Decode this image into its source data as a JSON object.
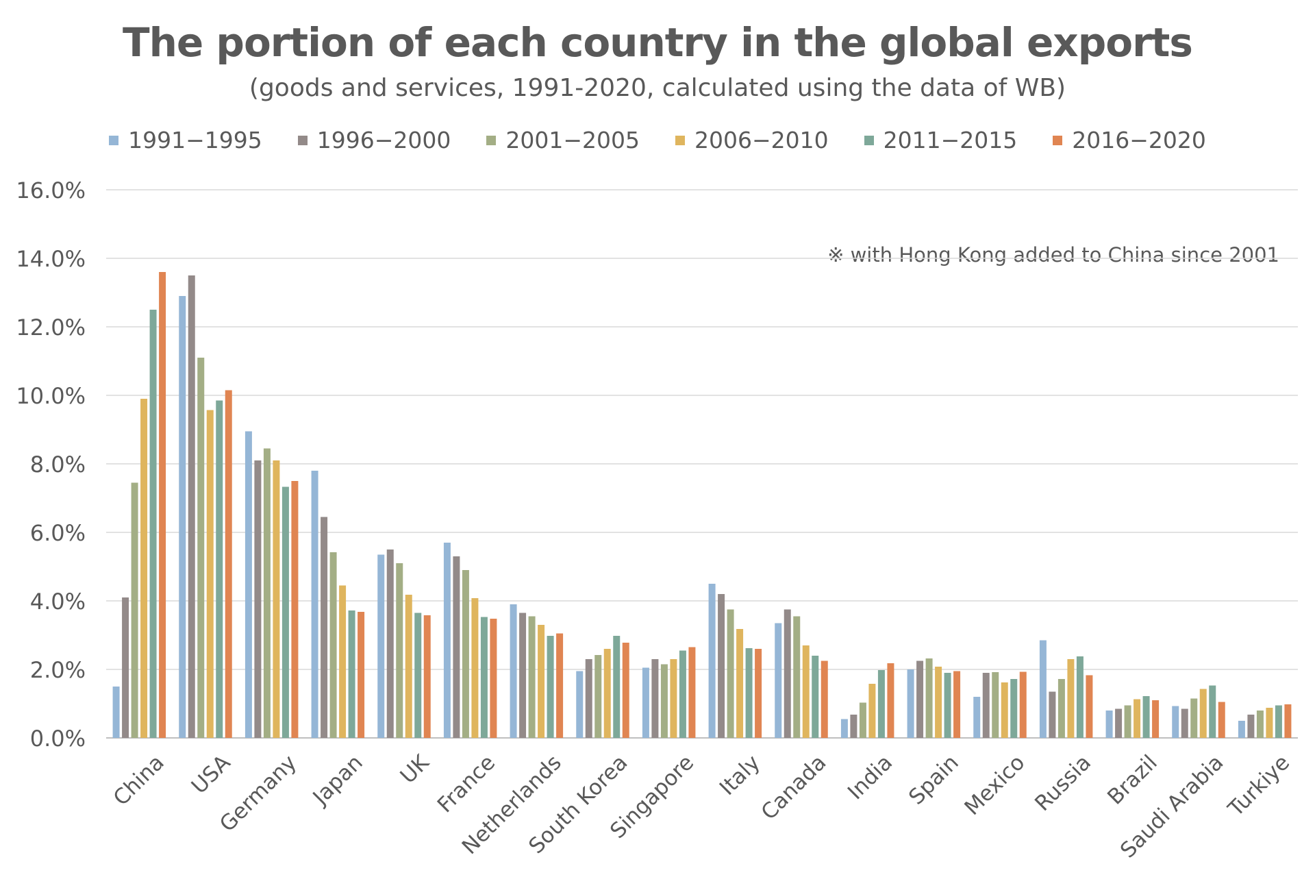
{
  "chart_data": {
    "type": "bar",
    "title": "The portion of each country in the global exports",
    "subtitle": "(goods and services, 1991-2020, calculated using the data of WB)",
    "note": "※  with Hong Kong added to China since 2001",
    "ylim": [
      0,
      16
    ],
    "yticks": [
      "0.0%",
      "2.0%",
      "4.0%",
      "6.0%",
      "8.0%",
      "10.0%",
      "12.0%",
      "14.0%",
      "16.0%"
    ],
    "grid": true,
    "legend_position": "top",
    "categories": [
      "China",
      "USA",
      "Germany",
      "Japan",
      "UK",
      "France",
      "Netherlands",
      "South Korea",
      "Singapore",
      "Italy",
      "Canada",
      "India",
      "Spain",
      "Mexico",
      "Russia",
      "Brazil",
      "Saudi Arabia",
      "Turkiye"
    ],
    "series": [
      {
        "name": "1991−1995",
        "color": "#95B6D6",
        "values": [
          1.5,
          12.9,
          8.95,
          7.8,
          5.35,
          5.7,
          3.9,
          1.95,
          2.05,
          4.5,
          3.35,
          0.55,
          2.0,
          1.2,
          2.85,
          0.8,
          0.93,
          0.5
        ]
      },
      {
        "name": "1996−2000",
        "color": "#938A89",
        "values": [
          4.1,
          13.5,
          8.1,
          6.45,
          5.5,
          5.3,
          3.65,
          2.3,
          2.3,
          4.2,
          3.75,
          0.68,
          2.25,
          1.9,
          1.35,
          0.85,
          0.85,
          0.68
        ]
      },
      {
        "name": "2001−2005",
        "color": "#A3AE85",
        "values": [
          7.45,
          11.1,
          8.45,
          5.42,
          5.1,
          4.9,
          3.55,
          2.42,
          2.15,
          3.75,
          3.55,
          1.03,
          2.32,
          1.92,
          1.72,
          0.95,
          1.15,
          0.8
        ]
      },
      {
        "name": "2006−2010",
        "color": "#DFB55E",
        "values": [
          9.9,
          9.57,
          8.1,
          4.45,
          4.18,
          4.08,
          3.3,
          2.6,
          2.3,
          3.18,
          2.7,
          1.58,
          2.08,
          1.62,
          2.3,
          1.13,
          1.43,
          0.88
        ]
      },
      {
        "name": "2011−2015",
        "color": "#7EA899",
        "values": [
          12.5,
          9.85,
          7.33,
          3.72,
          3.65,
          3.53,
          2.98,
          2.98,
          2.55,
          2.62,
          2.4,
          1.98,
          1.9,
          1.72,
          2.38,
          1.22,
          1.53,
          0.95
        ]
      },
      {
        "name": "2016−2020",
        "color": "#E08552",
        "values": [
          13.6,
          10.15,
          7.5,
          3.68,
          3.58,
          3.48,
          3.05,
          2.78,
          2.65,
          2.6,
          2.25,
          2.18,
          1.95,
          1.93,
          1.83,
          1.1,
          1.05,
          0.98
        ]
      }
    ]
  }
}
